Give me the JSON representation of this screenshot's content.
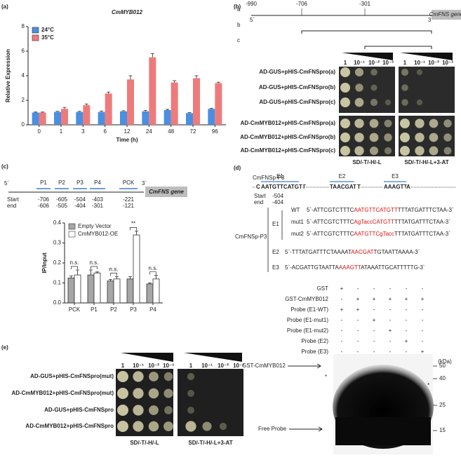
{
  "chart_data": [
    {
      "type": "bar",
      "panel": "(a)",
      "title": "CmMYB012",
      "xlabel": "Time (h)",
      "ylabel": "Relative Expression",
      "categories": [
        "0",
        "1",
        "3",
        "6",
        "12",
        "24",
        "48",
        "72",
        "96"
      ],
      "ylim": [
        0,
        8
      ],
      "yticks": [
        0,
        2,
        4,
        6,
        8
      ],
      "legend": "upper-left",
      "series": [
        {
          "name": "24°C",
          "color": "#4a8fe0",
          "values": [
            1.0,
            1.05,
            1.05,
            1.05,
            1.1,
            1.1,
            1.2,
            0.95,
            1.3
          ],
          "errors": [
            0.04,
            0.05,
            0.05,
            0.08,
            0.05,
            0.08,
            0.06,
            0.05,
            0.05
          ]
        },
        {
          "name": "35°C",
          "color": "#ee7b7b",
          "values": [
            1.0,
            1.3,
            1.6,
            2.55,
            3.7,
            5.5,
            3.45,
            3.8,
            3.4
          ],
          "errors": [
            0.04,
            0.12,
            0.1,
            0.12,
            0.3,
            0.3,
            0.15,
            0.2,
            0.08
          ]
        }
      ]
    },
    {
      "type": "bar",
      "panel": "(c)",
      "ylabel": "IP/Input",
      "categories": [
        "PCK",
        "P1",
        "P2",
        "P3",
        "P4"
      ],
      "ylim": [
        0,
        0.4
      ],
      "yticks": [
        {
          "value": 0,
          "label": "0.0"
        },
        0.1,
        0.2,
        0.3,
        0.4
      ],
      "legend": "upper-left",
      "annotations": [
        "n.s.",
        "n.s.",
        "n.s.",
        "**",
        "n.s."
      ],
      "series": [
        {
          "name": "Empty Vector",
          "color": "#a6a6a6",
          "values": [
            0.125,
            0.14,
            0.11,
            0.12,
            0.095
          ],
          "errors": [
            0.01,
            0.025,
            0.008,
            0.012,
            0.005
          ]
        },
        {
          "name": "CmMYB012-OE",
          "color": "#ffffff",
          "values": [
            0.14,
            0.15,
            0.12,
            0.34,
            0.12
          ],
          "errors": [
            0.025,
            0.005,
            0.012,
            0.02,
            0.018
          ]
        }
      ]
    }
  ],
  "panel_b": {
    "label": "(b)",
    "positions": [
      "-990",
      "-706",
      "-301"
    ],
    "five": "5`",
    "three": "3`",
    "gene": "CmFNS gene",
    "constructs": [
      "a",
      "b",
      "c"
    ],
    "dilutions": [
      "1",
      "10⁻¹",
      "10⁻²",
      "10⁻³"
    ],
    "rows": [
      "AD-GUS+pHIS-CmFNSpro(a)",
      "AD-GUS+pHIS-CmFNSpro(b)",
      "AD-GUS+pHIS-CmFNSpro(c)",
      "AD-CmMYB012+pHIS-CmFNSpro(a)",
      "AD-CmMYB012+pHIS-CmFNSpro(b)",
      "AD-CmMYB012+pHIS-CmFNSpro(c)"
    ],
    "media": [
      "SD/-T/-H/-L",
      "SD/-T/-H/-L+3-AT"
    ]
  },
  "panel_c_diagram": {
    "five": "5`",
    "three": "3`",
    "gene": "CmFNS gene",
    "start_label": "Start",
    "end_label": "end",
    "fragments": [
      {
        "name": "P1",
        "start": "-706",
        "end": "-606"
      },
      {
        "name": "P2",
        "start": "-605",
        "end": "-505"
      },
      {
        "name": "P3",
        "start": "-504",
        "end": "-404"
      },
      {
        "name": "P4",
        "start": "-403",
        "end": "-301"
      },
      {
        "name": "PCK",
        "start": "-221",
        "end": "-121"
      }
    ]
  },
  "panel_d": {
    "label": "(d)",
    "probe_name": "CmFNSp-P3",
    "probe_segments": [
      "C",
      "AATGTTCATGTT",
      "T",
      "TAACGATT",
      "T",
      "AAAGTT",
      "A"
    ],
    "elements": [
      "E1",
      "E2",
      "E3"
    ],
    "start_label": "Start",
    "end_label": "end",
    "start": "-504",
    "end": "-404",
    "group_label": "CmFNSp-P3",
    "seq_groups": [
      {
        "element": "E1",
        "rows": [
          {
            "name": "WT",
            "parts": [
              "5`-ATTCGTCTTTC",
              "AATGTTCATGTT",
              "TTTATGATTTCTAA-3`"
            ]
          },
          {
            "name": "mut1",
            "parts": [
              "5`-ATTCGTCTTTC",
              "AgTaccCATGTT",
              "TTTATGATTTCTAA-3`"
            ]
          },
          {
            "name": "mut2",
            "parts": [
              "5`-ATTCGTCTTTC",
              "AATGTTCgTacc",
              "TTTATGATTTCTAA-3`"
            ]
          }
        ]
      },
      {
        "element": "E2",
        "rows": [
          {
            "parts": [
              "5`-TTTATGATTTCTAAAAT",
              "AACGAT",
              "TGTAATTAAAA-3`"
            ]
          }
        ]
      },
      {
        "element": "E3",
        "rows": [
          {
            "parts": [
              "5`-ACGATTGTAATTA",
              "AAAGTT",
              "ATAAATTGCATTTTTG-3`"
            ]
          }
        ]
      }
    ],
    "emsa_rows": [
      {
        "label": "GST",
        "lanes": [
          "+",
          "-",
          "-",
          "-",
          "-",
          "-"
        ]
      },
      {
        "label": "GST-CmMYB012",
        "lanes": [
          "-",
          "+",
          "+",
          "+",
          "+",
          "+"
        ]
      },
      {
        "label": "Probe (E1-WT)",
        "lanes": [
          "+",
          "+",
          "-",
          "-",
          "-",
          "-"
        ]
      },
      {
        "label": "Probe (E1-mut1)",
        "lanes": [
          "-",
          "-",
          "+",
          "-",
          "-",
          "-"
        ]
      },
      {
        "label": "Probe (E1-mut2)",
        "lanes": [
          "-",
          "-",
          "-",
          "+",
          "-",
          "-"
        ]
      },
      {
        "label": "Probe (E2)",
        "lanes": [
          "-",
          "-",
          "-",
          "-",
          "+",
          "-"
        ]
      },
      {
        "label": "Probe (E3)",
        "lanes": [
          "-",
          "-",
          "-",
          "-",
          "-",
          "+"
        ]
      }
    ],
    "kda_label": "(kDa)",
    "markers": [
      "50",
      "40",
      "25",
      "15"
    ],
    "bands": [
      "GST-CmMYB012",
      "Free Probe"
    ],
    "star": "*"
  },
  "panel_e": {
    "label": "(e)",
    "dilutions": [
      "1",
      "10⁻¹",
      "10⁻²",
      "10⁻³"
    ],
    "rows": [
      "AD-GUS+pHIS-CmFNSpro(mut)",
      "AD-CmMYB012+pHIS-CmFNSpro(mut)",
      "AD-GUS+pHIS-CmFNSpro",
      "AD-CmMYB012+pHIS-CmFNSpro"
    ],
    "media": [
      "SD/-T/-H/-L",
      "SD/-T/-H/-L+3-AT"
    ]
  }
}
